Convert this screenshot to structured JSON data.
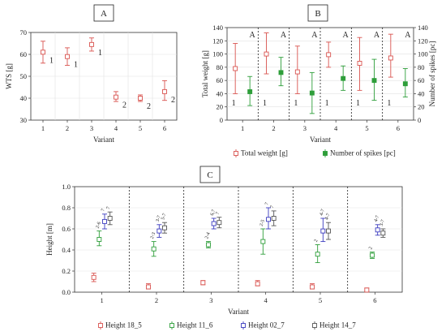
{
  "chart_data": [
    {
      "panel": "A",
      "type": "scatter",
      "xlabel": "Variant",
      "ylabel": "WTS [g]",
      "ylim": [
        30,
        70
      ],
      "yticks": [
        30,
        40,
        50,
        60,
        70
      ],
      "categories": [
        "1",
        "2",
        "3",
        "4",
        "5",
        "6"
      ],
      "series": [
        {
          "color": "#d9534f",
          "values": [
            61,
            59,
            64.5,
            40.5,
            40,
            43
          ],
          "low": [
            56,
            55,
            61.5,
            38.5,
            38.5,
            39
          ],
          "high": [
            66,
            63,
            67.5,
            43,
            41.5,
            48
          ],
          "labels": [
            "1",
            "1",
            "1",
            "2",
            "2",
            "2"
          ]
        }
      ],
      "grid": true
    },
    {
      "panel": "B",
      "type": "scatter",
      "xlabel": "Variant",
      "ylabel": "Total weight [g]",
      "y2label": "Number of spikes [pc]",
      "ylim": [
        0,
        140
      ],
      "y2lim": [
        0,
        140
      ],
      "yticks": [
        0,
        20,
        40,
        60,
        80,
        100,
        120,
        140
      ],
      "categories": [
        "1",
        "2",
        "3",
        "4",
        "5",
        "6"
      ],
      "series": [
        {
          "name": "Total weight [g]",
          "color": "#d9534f",
          "values": [
            78,
            100,
            73,
            99,
            86,
            94
          ],
          "low": [
            40,
            70,
            40,
            80,
            45,
            65
          ],
          "high": [
            116,
            132,
            112,
            118,
            125,
            130
          ],
          "labels": [
            "1",
            "1",
            "1",
            "1",
            "1",
            "1"
          ]
        },
        {
          "name": "Number of spikes [pc]",
          "color": "#2e9e3a",
          "values": [
            43,
            72,
            41,
            63,
            60,
            55
          ],
          "low": [
            22,
            52,
            10,
            45,
            30,
            35
          ],
          "high": [
            66,
            95,
            72,
            82,
            92,
            78
          ],
          "labels": [
            "A",
            "A",
            "A",
            "A",
            "A",
            "A"
          ]
        }
      ],
      "legend": "bottom",
      "grid": true
    },
    {
      "panel": "C",
      "type": "scatter",
      "xlabel": "Variant",
      "ylabel": "Height [m]",
      "ylim": [
        0,
        1.0
      ],
      "yticks": [
        0.0,
        0.2,
        0.4,
        0.6,
        0.8,
        1.0
      ],
      "categories": [
        "1",
        "2",
        "3",
        "4",
        "5",
        "6"
      ],
      "series": [
        {
          "name": "Height 18_5",
          "color": "#d9534f",
          "values": [
            0.14,
            0.05,
            0.09,
            0.08,
            0.05,
            0.02
          ],
          "low": [
            0.1,
            0.03,
            0.07,
            0.06,
            0.03,
            0.01
          ],
          "high": [
            0.18,
            0.08,
            0.11,
            0.11,
            0.08,
            0.04
          ],
          "labels": [
            "",
            "",
            "",
            "",
            "",
            ""
          ]
        },
        {
          "name": "Height 11_6",
          "color": "#2e9e3a",
          "values": [
            0.5,
            0.41,
            0.45,
            0.48,
            0.36,
            0.35
          ],
          "low": [
            0.44,
            0.34,
            0.42,
            0.36,
            0.28,
            0.32
          ],
          "high": [
            0.58,
            0.48,
            0.48,
            0.6,
            0.45,
            0.38
          ],
          "labels": [
            "2-6",
            "2-3",
            "2-4",
            "2-5",
            "2",
            "2"
          ]
        },
        {
          "name": "Height 02_7",
          "color": "#3b3bbf",
          "values": [
            0.67,
            0.58,
            0.65,
            0.69,
            0.58,
            0.59
          ],
          "low": [
            0.6,
            0.52,
            0.6,
            0.6,
            0.48,
            0.54
          ],
          "high": [
            0.74,
            0.64,
            0.7,
            0.8,
            0.7,
            0.64
          ],
          "labels": [
            "7",
            "3-7",
            "6,7",
            "7",
            "4-7",
            "4-7"
          ]
        },
        {
          "name": "Height 14_7",
          "color": "#555555",
          "values": [
            0.7,
            0.61,
            0.66,
            0.7,
            0.58,
            0.56
          ],
          "low": [
            0.64,
            0.56,
            0.61,
            0.63,
            0.5,
            0.52
          ],
          "high": [
            0.76,
            0.66,
            0.71,
            0.77,
            0.66,
            0.6
          ],
          "labels": [
            "7",
            "5-7",
            "7",
            "7",
            "4-7",
            "3-7"
          ]
        }
      ],
      "legend": "bottom",
      "grid": true
    }
  ]
}
